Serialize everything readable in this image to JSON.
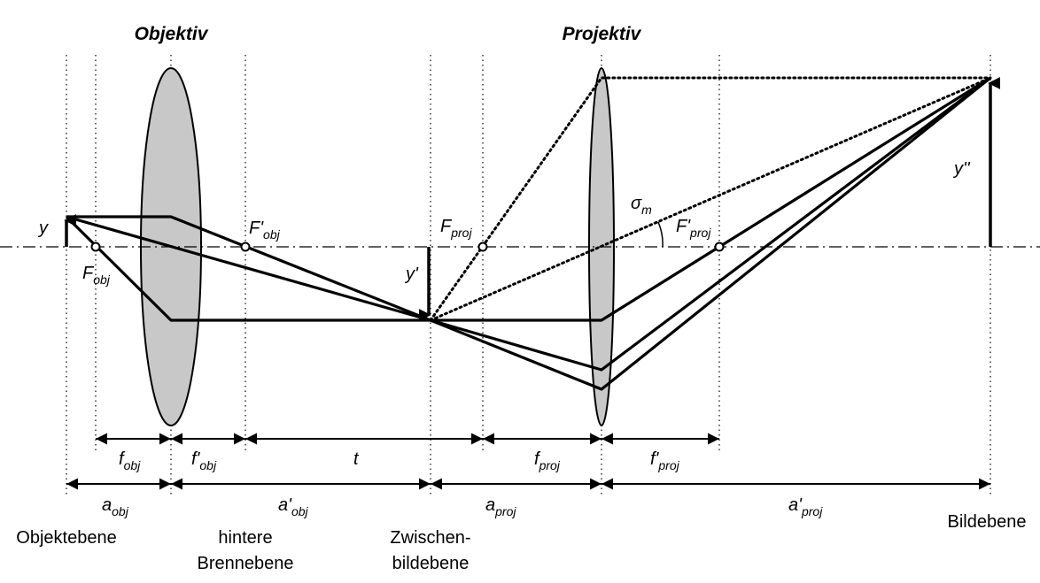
{
  "titles": {
    "objective": "Objektiv",
    "projective": "Projektiv"
  },
  "points": {
    "y": "y",
    "f_obj": {
      "main": "F",
      "sub": "obj"
    },
    "f_obj_prime": {
      "main": "F'",
      "sub": "obj"
    },
    "y_prime": "y'",
    "f_proj": {
      "main": "F",
      "sub": "proj"
    },
    "sigma": {
      "main": "σ",
      "sub": "m"
    },
    "f_proj_prime": {
      "main": "F'",
      "sub": "proj"
    },
    "y_double_prime": "y''"
  },
  "dimensions": {
    "f_obj": {
      "main": "f",
      "sub": "obj"
    },
    "f_obj_prime": {
      "main": "f'",
      "sub": "obj"
    },
    "t": "t",
    "f_proj": {
      "main": "f",
      "sub": "proj"
    },
    "f_proj_prime": {
      "main": "f'",
      "sub": "proj"
    },
    "a_obj": {
      "main": "a",
      "sub": "obj"
    },
    "a_obj_prime": {
      "main": "a'",
      "sub": "obj"
    },
    "a_proj": {
      "main": "a",
      "sub": "proj"
    },
    "a_proj_prime": {
      "main": "a'",
      "sub": "proj"
    }
  },
  "planes": {
    "object": "Objektebene",
    "back_focal_1": "hintere",
    "back_focal_2": "Brennebene",
    "intermediate_1": "Zwischen-",
    "intermediate_2": "bildebene",
    "image": "Bildebene"
  }
}
